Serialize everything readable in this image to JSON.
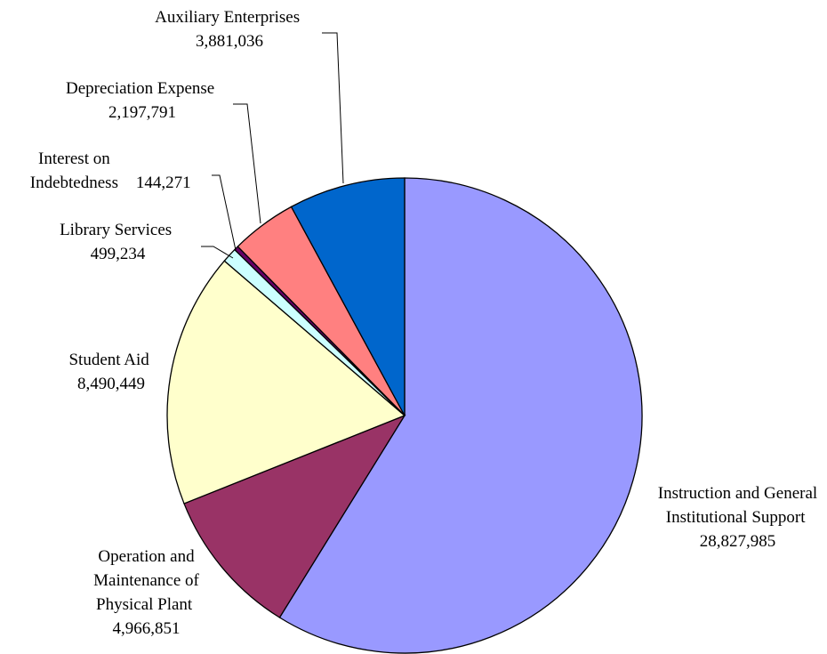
{
  "chart_data": {
    "type": "pie",
    "categories": [
      "Instruction and General Institutional Support",
      "Operation and Maintenance of Physical Plant",
      "Student Aid",
      "Library Services",
      "Interest on Indebtedness",
      "Depreciation Expense",
      "Auxiliary Enterprises"
    ],
    "values": [
      28827985,
      4966851,
      8490449,
      499234,
      144271,
      2197791,
      3881036
    ],
    "value_labels": [
      "28,827,985",
      "4,966,851",
      "8,490,449",
      "499,234",
      "144,271",
      "2,197,791",
      "3,881,036"
    ],
    "colors": [
      "#9999ff",
      "#993366",
      "#ffffcc",
      "#ccffff",
      "#660066",
      "#ff8080",
      "#0066cc"
    ]
  }
}
